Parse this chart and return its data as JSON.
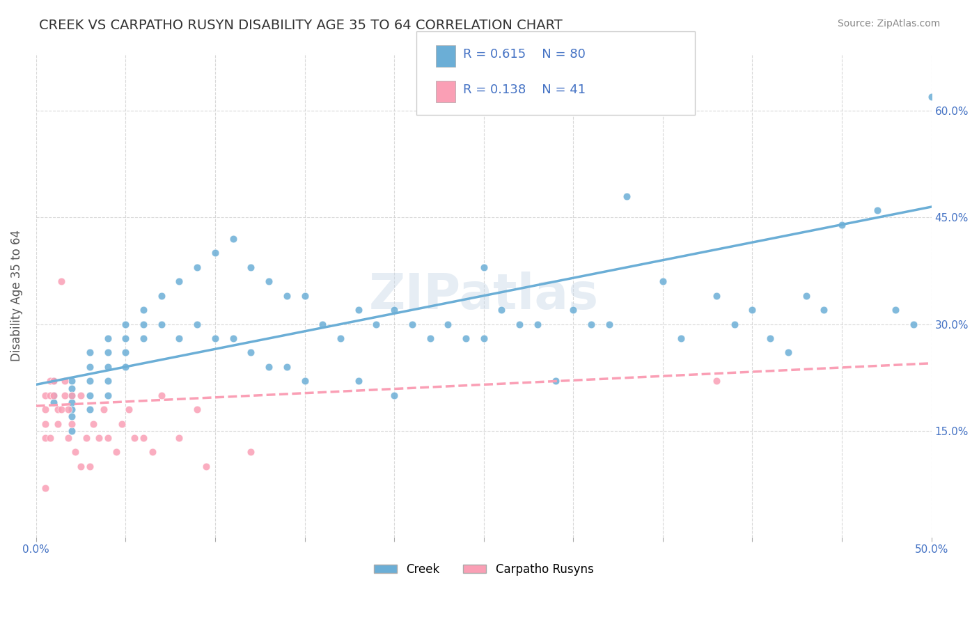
{
  "title": "CREEK VS CARPATHO RUSYN DISABILITY AGE 35 TO 64 CORRELATION CHART",
  "source_text": "Source: ZipAtlas.com",
  "xlabel": "",
  "ylabel": "Disability Age 35 to 64",
  "xlim": [
    0.0,
    0.5
  ],
  "ylim": [
    0.0,
    0.68
  ],
  "xticks": [
    0.0,
    0.05,
    0.1,
    0.15,
    0.2,
    0.25,
    0.3,
    0.35,
    0.4,
    0.45,
    0.5
  ],
  "xticklabels": [
    "0.0%",
    "",
    "",
    "",
    "",
    "",
    "",
    "",
    "",
    "",
    "50.0%"
  ],
  "yticks": [
    0.15,
    0.3,
    0.45,
    0.6
  ],
  "yticklabels": [
    "15.0%",
    "30.0%",
    "45.0%",
    "60.0%"
  ],
  "creek_color": "#6baed6",
  "carpatho_color": "#fa9fb5",
  "creek_scatter": {
    "x": [
      0.01,
      0.01,
      0.01,
      0.02,
      0.02,
      0.02,
      0.02,
      0.02,
      0.02,
      0.02,
      0.03,
      0.03,
      0.03,
      0.03,
      0.03,
      0.04,
      0.04,
      0.04,
      0.04,
      0.04,
      0.05,
      0.05,
      0.05,
      0.05,
      0.06,
      0.06,
      0.06,
      0.07,
      0.07,
      0.08,
      0.08,
      0.09,
      0.09,
      0.1,
      0.1,
      0.11,
      0.11,
      0.12,
      0.12,
      0.13,
      0.13,
      0.14,
      0.14,
      0.15,
      0.15,
      0.16,
      0.17,
      0.18,
      0.18,
      0.19,
      0.2,
      0.2,
      0.21,
      0.22,
      0.23,
      0.24,
      0.25,
      0.25,
      0.26,
      0.27,
      0.28,
      0.29,
      0.3,
      0.31,
      0.32,
      0.33,
      0.35,
      0.36,
      0.38,
      0.39,
      0.4,
      0.41,
      0.42,
      0.43,
      0.44,
      0.45,
      0.47,
      0.48,
      0.49,
      0.5
    ],
    "y": [
      0.22,
      0.2,
      0.19,
      0.22,
      0.21,
      0.2,
      0.19,
      0.18,
      0.17,
      0.15,
      0.26,
      0.24,
      0.22,
      0.2,
      0.18,
      0.28,
      0.26,
      0.24,
      0.22,
      0.2,
      0.3,
      0.28,
      0.26,
      0.24,
      0.32,
      0.3,
      0.28,
      0.34,
      0.3,
      0.36,
      0.28,
      0.38,
      0.3,
      0.4,
      0.28,
      0.42,
      0.28,
      0.38,
      0.26,
      0.36,
      0.24,
      0.34,
      0.24,
      0.34,
      0.22,
      0.3,
      0.28,
      0.32,
      0.22,
      0.3,
      0.32,
      0.2,
      0.3,
      0.28,
      0.3,
      0.28,
      0.38,
      0.28,
      0.32,
      0.3,
      0.3,
      0.22,
      0.32,
      0.3,
      0.3,
      0.48,
      0.36,
      0.28,
      0.34,
      0.3,
      0.32,
      0.28,
      0.26,
      0.34,
      0.32,
      0.44,
      0.46,
      0.32,
      0.3,
      0.62
    ]
  },
  "carpatho_scatter": {
    "x": [
      0.005,
      0.005,
      0.005,
      0.005,
      0.005,
      0.008,
      0.008,
      0.008,
      0.01,
      0.01,
      0.012,
      0.012,
      0.014,
      0.014,
      0.016,
      0.016,
      0.018,
      0.018,
      0.02,
      0.02,
      0.022,
      0.025,
      0.025,
      0.028,
      0.03,
      0.032,
      0.035,
      0.038,
      0.04,
      0.045,
      0.048,
      0.052,
      0.055,
      0.06,
      0.065,
      0.07,
      0.08,
      0.09,
      0.095,
      0.38,
      0.12
    ],
    "y": [
      0.2,
      0.18,
      0.16,
      0.14,
      0.07,
      0.22,
      0.2,
      0.14,
      0.22,
      0.2,
      0.18,
      0.16,
      0.36,
      0.18,
      0.22,
      0.2,
      0.18,
      0.14,
      0.2,
      0.16,
      0.12,
      0.2,
      0.1,
      0.14,
      0.1,
      0.16,
      0.14,
      0.18,
      0.14,
      0.12,
      0.16,
      0.18,
      0.14,
      0.14,
      0.12,
      0.2,
      0.14,
      0.18,
      0.1,
      0.22,
      0.12
    ]
  },
  "creek_trend": {
    "x_start": 0.0,
    "x_end": 0.5,
    "y_start": 0.215,
    "y_end": 0.465
  },
  "carpatho_trend": {
    "x_start": 0.0,
    "x_end": 0.5,
    "y_start": 0.185,
    "y_end": 0.245
  },
  "legend_creek_R": "0.615",
  "legend_creek_N": "80",
  "legend_carpatho_R": "0.138",
  "legend_carpatho_N": "41",
  "watermark": "ZIPatlas",
  "background_color": "#ffffff",
  "grid_color": "#d0d0d0",
  "title_color": "#333333",
  "axis_label_color": "#555555",
  "tick_color": "#4472c4",
  "right_ytick_color": "#4472c4"
}
